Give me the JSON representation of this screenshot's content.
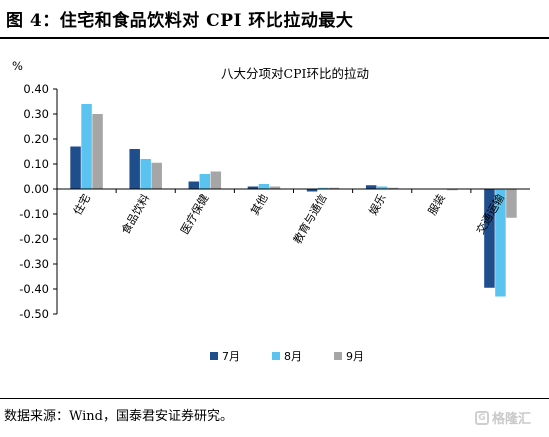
{
  "figure": {
    "title": "图 4：住宅和食品饮料对 CPI 环比拉动最大",
    "source": "数据来源：Wind，国泰君安证券研究。",
    "watermark": "格隆汇"
  },
  "chart_data": {
    "type": "bar",
    "title": "八大分项对CPI环比的拉动",
    "ylabel": "%",
    "xlabel": "",
    "ylim": [
      -0.5,
      0.4
    ],
    "yticks": [
      0.4,
      0.3,
      0.2,
      0.1,
      0.0,
      -0.1,
      -0.2,
      -0.3,
      -0.4,
      -0.5
    ],
    "categories": [
      "住宅",
      "食品饮料",
      "医疗保健",
      "其他",
      "教育与通信",
      "娱乐",
      "服装",
      "交通运输"
    ],
    "series": [
      {
        "name": "7月",
        "color": "#1f4e8c",
        "values": [
          0.17,
          0.16,
          0.03,
          0.01,
          -0.01,
          0.015,
          0.0,
          -0.395
        ]
      },
      {
        "name": "8月",
        "color": "#5bc3f0",
        "values": [
          0.34,
          0.12,
          0.06,
          0.02,
          0.005,
          0.01,
          0.0,
          -0.43
        ]
      },
      {
        "name": "9月",
        "color": "#a6a6a6",
        "values": [
          0.3,
          0.105,
          0.07,
          0.01,
          0.005,
          0.005,
          -0.005,
          -0.115
        ]
      }
    ],
    "grid": false,
    "legend": "bottom"
  }
}
